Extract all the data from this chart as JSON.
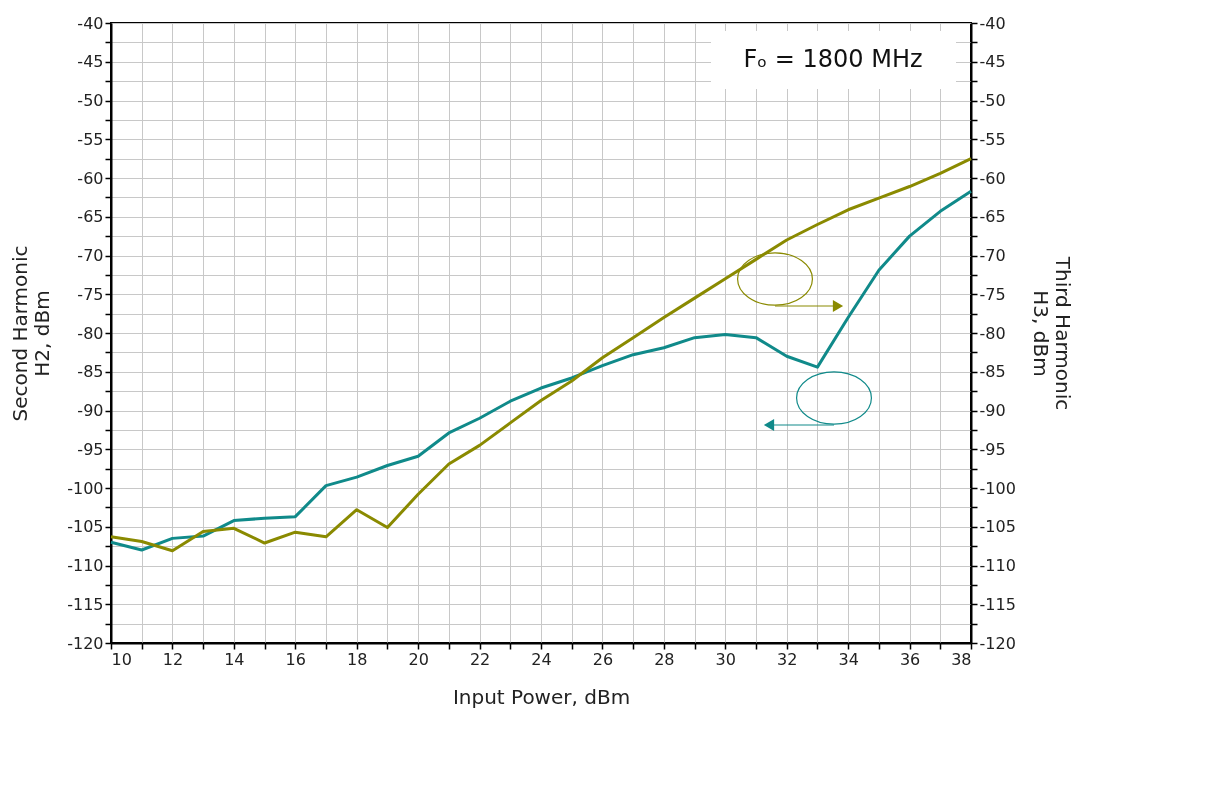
{
  "chart_data": {
    "type": "line",
    "xlabel": "Input Power, dBm",
    "ylabel": "Second Harmonic\nH2, dBm",
    "y2label": "Third Harmonic\nH3, dBm",
    "annotations": [
      "Fₒ = 1800 MHz"
    ],
    "x": [
      10,
      11,
      12,
      13,
      14,
      15,
      16,
      17,
      18,
      19,
      20,
      21,
      22,
      23,
      24,
      25,
      26,
      27,
      28,
      29,
      30,
      31,
      32,
      33,
      34,
      35,
      36,
      37,
      38
    ],
    "series": [
      {
        "color": "#108a8a",
        "values": [
          -107,
          -108,
          -106.5,
          -106.2,
          -104.2,
          -103.9,
          -103.7,
          -99.7,
          -98.6,
          -97.1,
          -95.9,
          -92.9,
          -91,
          -88.8,
          -87.1,
          -85.8,
          -84.2,
          -82.8,
          -81.9,
          -80.6,
          -80.2,
          -80.6,
          -83,
          -84.4,
          -78,
          -71.9,
          -67.5,
          -64.3,
          -61.7
        ]
      },
      {
        "color": "#8a8a00",
        "axis": "y2",
        "values": [
          -106.3,
          -106.9,
          -108.1,
          -105.6,
          -105.2,
          -107.1,
          -105.7,
          -106.3,
          -102.8,
          -105.1,
          -100.8,
          -96.9,
          -94.5,
          -91.6,
          -88.7,
          -86.2,
          -83.2,
          -80.6,
          -78,
          -75.5,
          -73,
          -70.5,
          -68,
          -66,
          -64.1,
          -62.6,
          -61.1,
          -59.4,
          -57.5
        ]
      }
    ],
    "xlim": [
      10,
      38
    ],
    "xticks": [
      10,
      {
        "value": 11,
        "label": null
      },
      12,
      {
        "value": 13,
        "label": null
      },
      14,
      {
        "value": 15,
        "label": null
      },
      16,
      {
        "value": 17,
        "label": null
      },
      18,
      {
        "value": 19,
        "label": null
      },
      20,
      {
        "value": 21,
        "label": null
      },
      22,
      {
        "value": 23,
        "label": null
      },
      24,
      {
        "value": 25,
        "label": null
      },
      26,
      {
        "value": 27,
        "label": null
      },
      28,
      {
        "value": 29,
        "label": null
      },
      30,
      {
        "value": 31,
        "label": null
      },
      32,
      {
        "value": 33,
        "label": null
      },
      34,
      {
        "value": 35,
        "label": null
      },
      36,
      {
        "value": 37,
        "label": null
      },
      38
    ],
    "ylim": [
      -120,
      -40
    ],
    "yticks": [
      -120,
      {
        "value": -117.5,
        "label": null
      },
      -115,
      {
        "value": -112.5,
        "label": null
      },
      -110,
      {
        "value": -107.5,
        "label": null
      },
      -105,
      {
        "value": -102.5,
        "label": null
      },
      -100,
      {
        "value": -97.5,
        "label": null
      },
      -95,
      {
        "value": -92.5,
        "label": null
      },
      -90,
      {
        "value": -87.5,
        "label": null
      },
      -85,
      {
        "value": -82.5,
        "label": null
      },
      -80,
      {
        "value": -77.5,
        "label": null
      },
      -75,
      {
        "value": -72.5,
        "label": null
      },
      -70,
      {
        "value": -67.5,
        "label": null
      },
      -65,
      {
        "value": -62.5,
        "label": null
      },
      -60,
      {
        "value": -57.5,
        "label": null
      },
      -55,
      {
        "value": -52.5,
        "label": null
      },
      -50,
      {
        "value": -47.5,
        "label": null
      },
      -45,
      {
        "value": -42.5,
        "label": null
      },
      -40
    ],
    "y2lim": [
      -120,
      -40
    ],
    "y2ticks": [
      -120,
      {
        "value": -117.5,
        "label": null
      },
      -115,
      {
        "value": -112.5,
        "label": null
      },
      -110,
      {
        "value": -107.5,
        "label": null
      },
      -105,
      {
        "value": -102.5,
        "label": null
      },
      -100,
      {
        "value": -97.5,
        "label": null
      },
      -95,
      {
        "value": -92.5,
        "label": null
      },
      -90,
      {
        "value": -87.5,
        "label": null
      },
      -85,
      {
        "value": -82.5,
        "label": null
      },
      -80,
      {
        "value": -77.5,
        "label": null
      },
      -75,
      {
        "value": -72.5,
        "label": null
      },
      -70,
      {
        "value": -67.5,
        "label": null
      },
      -65,
      {
        "value": -62.5,
        "label": null
      },
      -60,
      {
        "value": -57.5,
        "label": null
      },
      -55,
      {
        "value": -52.5,
        "label": null
      },
      -50,
      {
        "value": -47.5,
        "label": null
      },
      -45,
      {
        "value": -42.5,
        "label": null
      },
      -40
    ],
    "grid": true,
    "marker": "none",
    "line_style": "solid"
  }
}
